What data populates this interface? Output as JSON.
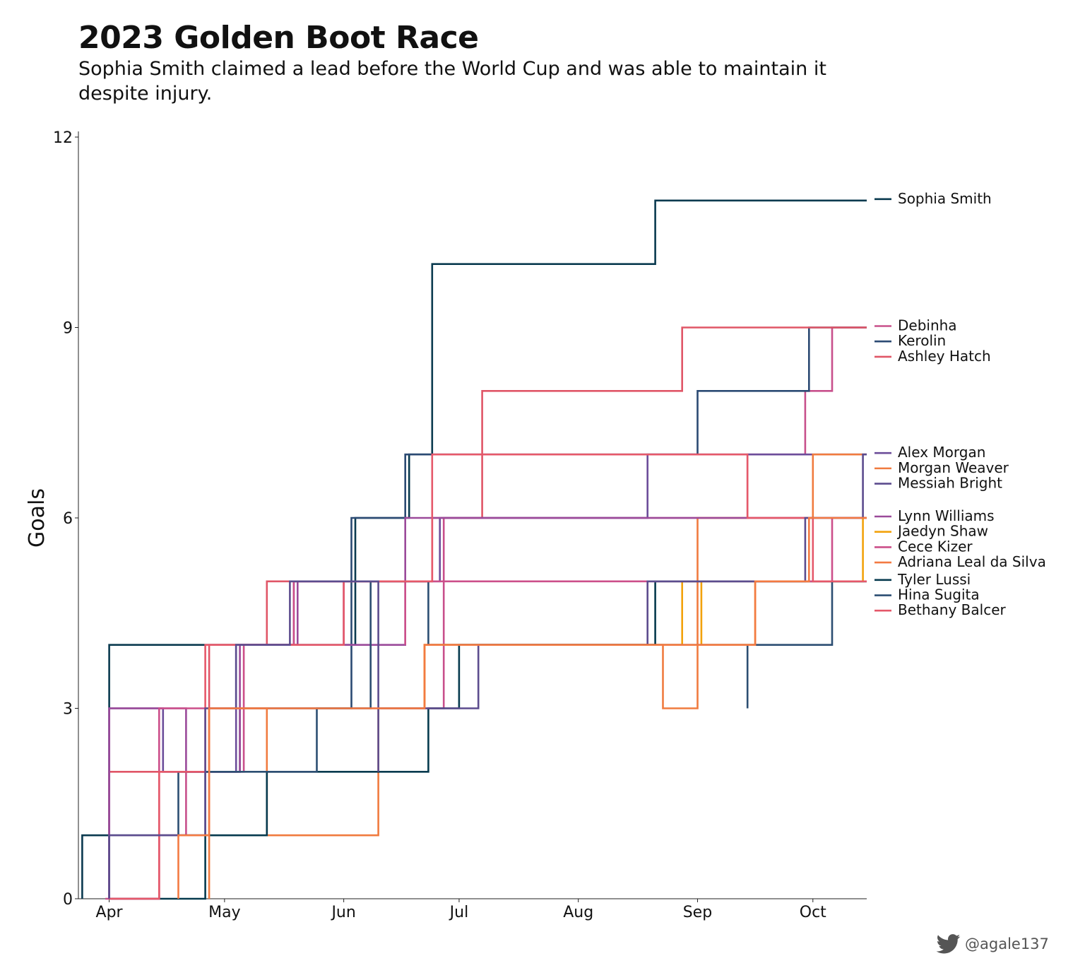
{
  "title": "2023 Golden Boot Race",
  "subtitle": "Sophia Smith claimed a lead before the World Cup and was able to maintain it despite injury.",
  "credit": {
    "handle": "@agale137",
    "icon": "twitter-bird-icon"
  },
  "chart_data": {
    "type": "line",
    "step": true,
    "ylabel": "Goals",
    "ylim": [
      0,
      12
    ],
    "yticks": [
      0,
      3,
      6,
      9,
      12
    ],
    "xlim": [
      "2023-03-24",
      "2023-10-15"
    ],
    "xticks": [
      {
        "date": "2023-04-01",
        "label": "Apr"
      },
      {
        "date": "2023-05-01",
        "label": "May"
      },
      {
        "date": "2023-06-01",
        "label": "Jun"
      },
      {
        "date": "2023-07-01",
        "label": "Jul"
      },
      {
        "date": "2023-08-01",
        "label": "Aug"
      },
      {
        "date": "2023-09-01",
        "label": "Sep"
      },
      {
        "date": "2023-10-01",
        "label": "Oct"
      }
    ],
    "end_date": "2023-10-15",
    "grid": false,
    "legend": "right, labels at line ends",
    "series": [
      {
        "name": "Sophia Smith",
        "color": "#0a3a4f",
        "points": [
          [
            "2023-03-25",
            0
          ],
          [
            "2023-03-25",
            1
          ],
          [
            "2023-04-01",
            1
          ],
          [
            "2023-04-01",
            4
          ],
          [
            "2023-06-04",
            4
          ],
          [
            "2023-06-04",
            6
          ],
          [
            "2023-06-18",
            6
          ],
          [
            "2023-06-18",
            7
          ],
          [
            "2023-06-24",
            7
          ],
          [
            "2023-06-24",
            10
          ],
          [
            "2023-08-21",
            10
          ],
          [
            "2023-08-21",
            11
          ],
          [
            "2023-10-15",
            11
          ]
        ]
      },
      {
        "name": "Debinha",
        "color": "#c8508c",
        "points": [
          [
            "2023-03-31",
            0
          ],
          [
            "2023-04-14",
            0
          ],
          [
            "2023-04-14",
            1
          ],
          [
            "2023-04-21",
            1
          ],
          [
            "2023-04-21",
            2
          ],
          [
            "2023-05-06",
            2
          ],
          [
            "2023-05-06",
            3
          ],
          [
            "2023-06-27",
            3
          ],
          [
            "2023-06-27",
            6
          ],
          [
            "2023-09-14",
            6
          ],
          [
            "2023-09-14",
            7
          ],
          [
            "2023-09-29",
            7
          ],
          [
            "2023-09-29",
            8
          ],
          [
            "2023-10-06",
            8
          ],
          [
            "2023-10-06",
            9
          ],
          [
            "2023-10-15",
            9
          ]
        ]
      },
      {
        "name": "Kerolin",
        "color": "#2b4a73",
        "points": [
          [
            "2023-04-01",
            0
          ],
          [
            "2023-04-01",
            1
          ],
          [
            "2023-04-26",
            1
          ],
          [
            "2023-04-26",
            2
          ],
          [
            "2023-05-05",
            2
          ],
          [
            "2023-05-05",
            3
          ],
          [
            "2023-06-03",
            3
          ],
          [
            "2023-06-03",
            6
          ],
          [
            "2023-06-17",
            6
          ],
          [
            "2023-06-17",
            7
          ],
          [
            "2023-09-01",
            7
          ],
          [
            "2023-09-01",
            8
          ],
          [
            "2023-09-30",
            8
          ],
          [
            "2023-09-30",
            9
          ],
          [
            "2023-10-15",
            9
          ]
        ]
      },
      {
        "name": "Ashley Hatch",
        "color": "#e05667",
        "points": [
          [
            "2023-04-01",
            0
          ],
          [
            "2023-04-01",
            2
          ],
          [
            "2023-04-27",
            2
          ],
          [
            "2023-04-27",
            4
          ],
          [
            "2023-05-12",
            4
          ],
          [
            "2023-05-12",
            5
          ],
          [
            "2023-06-01",
            5
          ],
          [
            "2023-06-01",
            5
          ],
          [
            "2023-06-24",
            5
          ],
          [
            "2023-06-24",
            6
          ],
          [
            "2023-07-07",
            6
          ],
          [
            "2023-07-07",
            8
          ],
          [
            "2023-08-28",
            8
          ],
          [
            "2023-08-28",
            9
          ],
          [
            "2023-10-15",
            9
          ]
        ]
      },
      {
        "name": "Alex Morgan",
        "color": "#6c4d9a",
        "points": [
          [
            "2023-04-01",
            0
          ],
          [
            "2023-04-01",
            3
          ],
          [
            "2023-04-15",
            3
          ],
          [
            "2023-04-15",
            2
          ],
          [
            "2023-05-04",
            2
          ],
          [
            "2023-05-04",
            4
          ],
          [
            "2023-05-19",
            4
          ],
          [
            "2023-05-19",
            5
          ],
          [
            "2023-06-26",
            5
          ],
          [
            "2023-06-26",
            6
          ],
          [
            "2023-08-19",
            6
          ],
          [
            "2023-08-19",
            7
          ],
          [
            "2023-10-14",
            7
          ],
          [
            "2023-10-15",
            7
          ]
        ]
      },
      {
        "name": "Morgan Weaver",
        "color": "#f07b3f",
        "points": [
          [
            "2023-04-27",
            0
          ],
          [
            "2023-04-27",
            3
          ],
          [
            "2023-05-12",
            3
          ],
          [
            "2023-05-12",
            1
          ],
          [
            "2023-06-10",
            1
          ],
          [
            "2023-06-10",
            3
          ],
          [
            "2023-06-22",
            3
          ],
          [
            "2023-06-22",
            4
          ],
          [
            "2023-08-23",
            4
          ],
          [
            "2023-08-23",
            3
          ],
          [
            "2023-09-01",
            3
          ],
          [
            "2023-09-01",
            6
          ],
          [
            "2023-10-01",
            6
          ],
          [
            "2023-10-01",
            7
          ],
          [
            "2023-10-15",
            7
          ]
        ]
      },
      {
        "name": "Lynn Williams",
        "color": "#9b4a9a",
        "points": [
          [
            "2023-04-01",
            0
          ],
          [
            "2023-04-01",
            3
          ],
          [
            "2023-04-21",
            3
          ],
          [
            "2023-04-21",
            2
          ],
          [
            "2023-05-05",
            2
          ],
          [
            "2023-05-05",
            4
          ],
          [
            "2023-05-20",
            4
          ],
          [
            "2023-05-20",
            5
          ],
          [
            "2023-06-01",
            5
          ],
          [
            "2023-06-01",
            4
          ],
          [
            "2023-06-17",
            4
          ],
          [
            "2023-06-17",
            6
          ],
          [
            "2023-10-15",
            6
          ]
        ]
      },
      {
        "name": "Jaedyn Shaw",
        "color": "#f2a20c",
        "points": [
          [
            "2023-06-22",
            3
          ],
          [
            "2023-06-22",
            4
          ],
          [
            "2023-08-28",
            4
          ],
          [
            "2023-08-28",
            5
          ],
          [
            "2023-09-02",
            5
          ],
          [
            "2023-09-02",
            4
          ],
          [
            "2023-09-16",
            4
          ],
          [
            "2023-09-16",
            5
          ],
          [
            "2023-10-01",
            5
          ],
          [
            "2023-10-01",
            5
          ],
          [
            "2023-10-14",
            5
          ],
          [
            "2023-10-14",
            6
          ],
          [
            "2023-10-15",
            6
          ]
        ]
      },
      {
        "name": "Tyler Lussi",
        "color": "#063a4e",
        "points": [
          [
            "2023-04-01",
            0
          ],
          [
            "2023-04-26",
            0
          ],
          [
            "2023-04-26",
            1
          ],
          [
            "2023-05-12",
            1
          ],
          [
            "2023-05-12",
            2
          ],
          [
            "2023-06-23",
            2
          ],
          [
            "2023-06-23",
            3
          ],
          [
            "2023-07-01",
            3
          ],
          [
            "2023-07-01",
            4
          ],
          [
            "2023-08-21",
            4
          ],
          [
            "2023-08-21",
            5
          ],
          [
            "2023-10-15",
            5
          ]
        ]
      },
      {
        "name": "Cece Kizer",
        "color": "#cc4f8a",
        "points": [
          [
            "2023-04-01",
            0
          ],
          [
            "2023-04-14",
            0
          ],
          [
            "2023-04-14",
            3
          ],
          [
            "2023-05-06",
            3
          ],
          [
            "2023-05-06",
            4
          ],
          [
            "2023-05-19",
            4
          ],
          [
            "2023-05-19",
            5
          ],
          [
            "2023-06-17",
            5
          ],
          [
            "2023-06-17",
            4
          ],
          [
            "2023-06-17",
            5
          ],
          [
            "2023-10-06",
            5
          ],
          [
            "2023-10-06",
            6
          ],
          [
            "2023-10-15",
            6
          ]
        ]
      },
      {
        "name": "Hina Sugita",
        "color": "#2c4e72",
        "points": [
          [
            "2023-04-19",
            1
          ],
          [
            "2023-04-19",
            2
          ],
          [
            "2023-05-12",
            2
          ],
          [
            "2023-05-12",
            2
          ],
          [
            "2023-05-25",
            2
          ],
          [
            "2023-05-25",
            3
          ],
          [
            "2023-06-08",
            3
          ],
          [
            "2023-06-08",
            5
          ],
          [
            "2023-06-23",
            5
          ],
          [
            "2023-06-23",
            4
          ],
          [
            "2023-09-14",
            4
          ],
          [
            "2023-09-14",
            3
          ],
          [
            "2023-09-14",
            4
          ],
          [
            "2023-10-06",
            4
          ],
          [
            "2023-10-06",
            5
          ],
          [
            "2023-10-15",
            5
          ]
        ]
      },
      {
        "name": "Bethany Balcer",
        "color": "#e5586a",
        "points": [
          [
            "2023-04-01",
            0
          ],
          [
            "2023-04-14",
            0
          ],
          [
            "2023-04-14",
            2
          ],
          [
            "2023-04-26",
            2
          ],
          [
            "2023-04-26",
            4
          ],
          [
            "2023-06-01",
            4
          ],
          [
            "2023-06-01",
            5
          ],
          [
            "2023-06-24",
            5
          ],
          [
            "2023-06-24",
            7
          ],
          [
            "2023-09-14",
            7
          ],
          [
            "2023-09-14",
            6
          ],
          [
            "2023-10-01",
            6
          ],
          [
            "2023-10-01",
            5
          ],
          [
            "2023-10-15",
            5
          ]
        ]
      },
      {
        "name": "Messiah Bright",
        "color": "#5c4c8e",
        "points": [
          [
            "2023-04-01",
            0
          ],
          [
            "2023-04-01",
            1
          ],
          [
            "2023-04-26",
            1
          ],
          [
            "2023-04-26",
            3
          ],
          [
            "2023-05-04",
            3
          ],
          [
            "2023-05-04",
            4
          ],
          [
            "2023-05-18",
            4
          ],
          [
            "2023-05-18",
            5
          ],
          [
            "2023-06-10",
            5
          ],
          [
            "2023-06-10",
            2
          ],
          [
            "2023-06-10",
            3
          ],
          [
            "2023-07-06",
            3
          ],
          [
            "2023-07-06",
            4
          ],
          [
            "2023-08-19",
            4
          ],
          [
            "2023-08-19",
            5
          ],
          [
            "2023-09-29",
            5
          ],
          [
            "2023-09-29",
            6
          ],
          [
            "2023-10-14",
            6
          ],
          [
            "2023-10-14",
            7
          ],
          [
            "2023-10-15",
            7
          ]
        ]
      },
      {
        "name": "Adriana Leal da Silva",
        "color": "#f37a42",
        "points": [
          [
            "2023-04-19",
            0
          ],
          [
            "2023-04-19",
            1
          ],
          [
            "2023-04-27",
            1
          ],
          [
            "2023-04-27",
            3
          ],
          [
            "2023-05-24",
            3
          ],
          [
            "2023-05-24",
            3
          ],
          [
            "2023-06-22",
            3
          ],
          [
            "2023-06-22",
            4
          ],
          [
            "2023-09-16",
            4
          ],
          [
            "2023-09-16",
            5
          ],
          [
            "2023-09-30",
            5
          ],
          [
            "2023-09-30",
            6
          ],
          [
            "2023-10-15",
            6
          ]
        ]
      }
    ]
  }
}
